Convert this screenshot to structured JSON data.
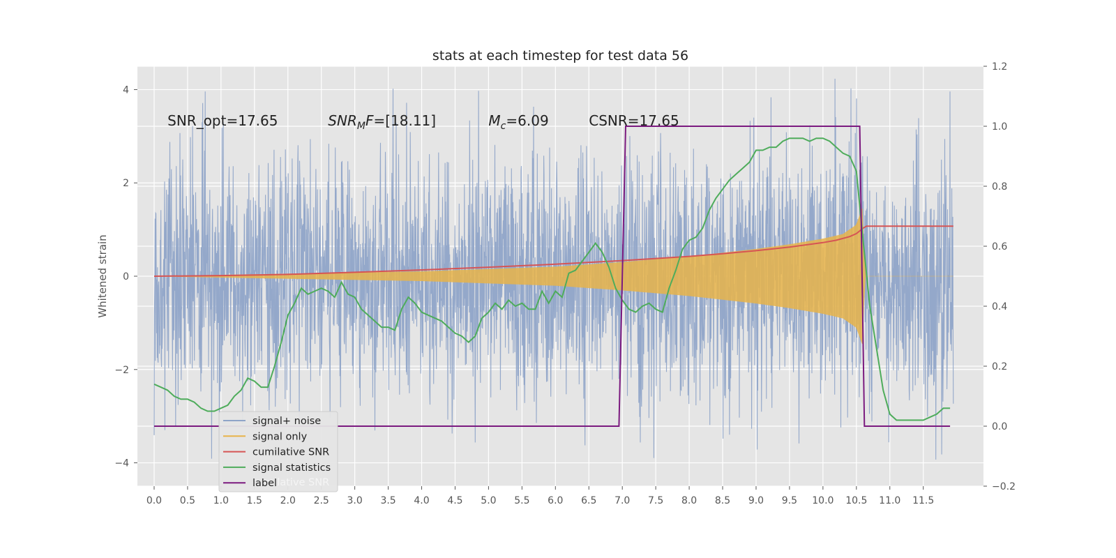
{
  "chart_data": {
    "type": "line",
    "title": "stats at each timestep for test data 56",
    "ylabel_left": "Whitened strain",
    "xlim": [
      -0.25,
      12.4
    ],
    "ylim_left": [
      -4.5,
      4.5
    ],
    "ylim_right": [
      -0.2,
      1.2
    ],
    "grid": true,
    "legend_placement": "lower-left",
    "x_ticks": [
      "0.0",
      "0.5",
      "1.0",
      "1.5",
      "2.0",
      "2.5",
      "3.0",
      "3.5",
      "4.0",
      "4.5",
      "5.0",
      "5.5",
      "6.0",
      "6.5",
      "7.0",
      "7.5",
      "8.0",
      "8.5",
      "9.0",
      "9.5",
      "10.0",
      "10.5",
      "11.0",
      "11.5"
    ],
    "y_left_ticks": [
      "4",
      "2",
      "0",
      "−2",
      "−4"
    ],
    "y_right_ticks": [
      "1.2",
      "1.0",
      "0.8",
      "0.6",
      "0.4",
      "0.2",
      "0.0",
      "−0.2"
    ],
    "annotations": [
      {
        "text": "SNR_opt=17.65",
        "x": 0.2
      },
      {
        "prefix": "SNR",
        "sub": "M",
        "suffix": "F=[18.11]",
        "x": 2.6
      },
      {
        "prefix": "M",
        "sub": "c",
        "suffix": "=6.09",
        "x": 5.0
      },
      {
        "text": "CSNR=17.65",
        "x": 6.5
      }
    ],
    "series": [
      {
        "name": "signal+ noise",
        "axis": "left",
        "color": "#8fa4c8",
        "kind": "noise",
        "t_end": 11.95,
        "amplitude_rms": 1.3,
        "max_abs": 4.1
      },
      {
        "name": "signal only",
        "axis": "left",
        "color": "#e8b44a",
        "kind": "chirp",
        "envelope": [
          [
            0.0,
            0.0
          ],
          [
            2.0,
            0.05
          ],
          [
            4.0,
            0.1
          ],
          [
            6.0,
            0.2
          ],
          [
            7.0,
            0.3
          ],
          [
            8.0,
            0.42
          ],
          [
            9.0,
            0.58
          ],
          [
            9.5,
            0.68
          ],
          [
            10.0,
            0.8
          ],
          [
            10.3,
            0.9
          ],
          [
            10.5,
            1.1
          ],
          [
            10.6,
            1.5
          ],
          [
            10.62,
            0.0
          ],
          [
            11.95,
            0.0
          ]
        ]
      },
      {
        "name": "cumilative SNR",
        "axis": "right",
        "color": "#d65454",
        "x": [
          0.0,
          1.0,
          2.0,
          3.0,
          4.0,
          5.0,
          6.0,
          7.0,
          8.0,
          8.5,
          9.0,
          9.5,
          10.0,
          10.2,
          10.4,
          10.5,
          10.6,
          10.65,
          11.95
        ],
        "y": [
          0.5,
          0.502,
          0.506,
          0.513,
          0.521,
          0.53,
          0.54,
          0.552,
          0.566,
          0.575,
          0.585,
          0.597,
          0.612,
          0.62,
          0.632,
          0.642,
          0.66,
          0.667,
          0.667
        ]
      },
      {
        "name": "signal statistics",
        "axis": "right",
        "color": "#4eac5b",
        "x": [
          0.0,
          0.1,
          0.2,
          0.3,
          0.4,
          0.5,
          0.6,
          0.7,
          0.8,
          0.9,
          1.0,
          1.1,
          1.2,
          1.3,
          1.4,
          1.5,
          1.6,
          1.7,
          1.8,
          1.9,
          2.0,
          2.1,
          2.2,
          2.3,
          2.4,
          2.5,
          2.6,
          2.7,
          2.8,
          2.9,
          3.0,
          3.1,
          3.2,
          3.3,
          3.4,
          3.5,
          3.6,
          3.7,
          3.8,
          3.9,
          4.0,
          4.1,
          4.2,
          4.3,
          4.4,
          4.5,
          4.6,
          4.7,
          4.8,
          4.9,
          5.0,
          5.1,
          5.2,
          5.3,
          5.4,
          5.5,
          5.6,
          5.7,
          5.8,
          5.9,
          6.0,
          6.1,
          6.2,
          6.3,
          6.4,
          6.5,
          6.6,
          6.7,
          6.8,
          6.9,
          7.0,
          7.1,
          7.2,
          7.3,
          7.4,
          7.5,
          7.6,
          7.7,
          7.8,
          7.9,
          8.0,
          8.1,
          8.2,
          8.3,
          8.4,
          8.5,
          8.6,
          8.7,
          8.8,
          8.9,
          9.0,
          9.1,
          9.2,
          9.3,
          9.4,
          9.5,
          9.6,
          9.7,
          9.8,
          9.9,
          10.0,
          10.1,
          10.2,
          10.3,
          10.4,
          10.5,
          10.6,
          10.7,
          10.8,
          10.9,
          11.0,
          11.1,
          11.2,
          11.3,
          11.4,
          11.5,
          11.6,
          11.7,
          11.8,
          11.9
        ],
        "y": [
          0.14,
          0.13,
          0.12,
          0.1,
          0.09,
          0.09,
          0.08,
          0.06,
          0.05,
          0.05,
          0.06,
          0.07,
          0.1,
          0.12,
          0.16,
          0.15,
          0.13,
          0.13,
          0.2,
          0.28,
          0.37,
          0.41,
          0.46,
          0.44,
          0.45,
          0.46,
          0.45,
          0.43,
          0.48,
          0.44,
          0.43,
          0.39,
          0.37,
          0.35,
          0.33,
          0.33,
          0.32,
          0.39,
          0.43,
          0.41,
          0.38,
          0.37,
          0.36,
          0.35,
          0.33,
          0.31,
          0.3,
          0.28,
          0.3,
          0.36,
          0.38,
          0.41,
          0.39,
          0.42,
          0.4,
          0.41,
          0.39,
          0.39,
          0.45,
          0.41,
          0.45,
          0.43,
          0.51,
          0.52,
          0.55,
          0.58,
          0.61,
          0.58,
          0.53,
          0.46,
          0.42,
          0.39,
          0.38,
          0.4,
          0.41,
          0.39,
          0.38,
          0.46,
          0.52,
          0.59,
          0.62,
          0.63,
          0.66,
          0.72,
          0.76,
          0.79,
          0.82,
          0.84,
          0.86,
          0.88,
          0.92,
          0.92,
          0.93,
          0.93,
          0.95,
          0.96,
          0.96,
          0.96,
          0.95,
          0.96,
          0.96,
          0.95,
          0.93,
          0.91,
          0.9,
          0.85,
          0.62,
          0.4,
          0.26,
          0.12,
          0.04,
          0.02,
          0.02,
          0.02,
          0.02,
          0.02,
          0.03,
          0.04,
          0.06,
          0.06
        ]
      },
      {
        "name": "label",
        "axis": "right",
        "color": "#7b1a7f",
        "x": [
          0.0,
          6.95,
          7.05,
          10.55,
          10.62,
          11.9
        ],
        "y": [
          0.0,
          0.0,
          1.0,
          1.0,
          0.0,
          0.0
        ]
      }
    ],
    "legend_ghost_text": "cumilative SNR",
    "legend": [
      "signal+ noise",
      "signal only",
      "cumilative SNR",
      "signal statistics",
      "label"
    ]
  }
}
